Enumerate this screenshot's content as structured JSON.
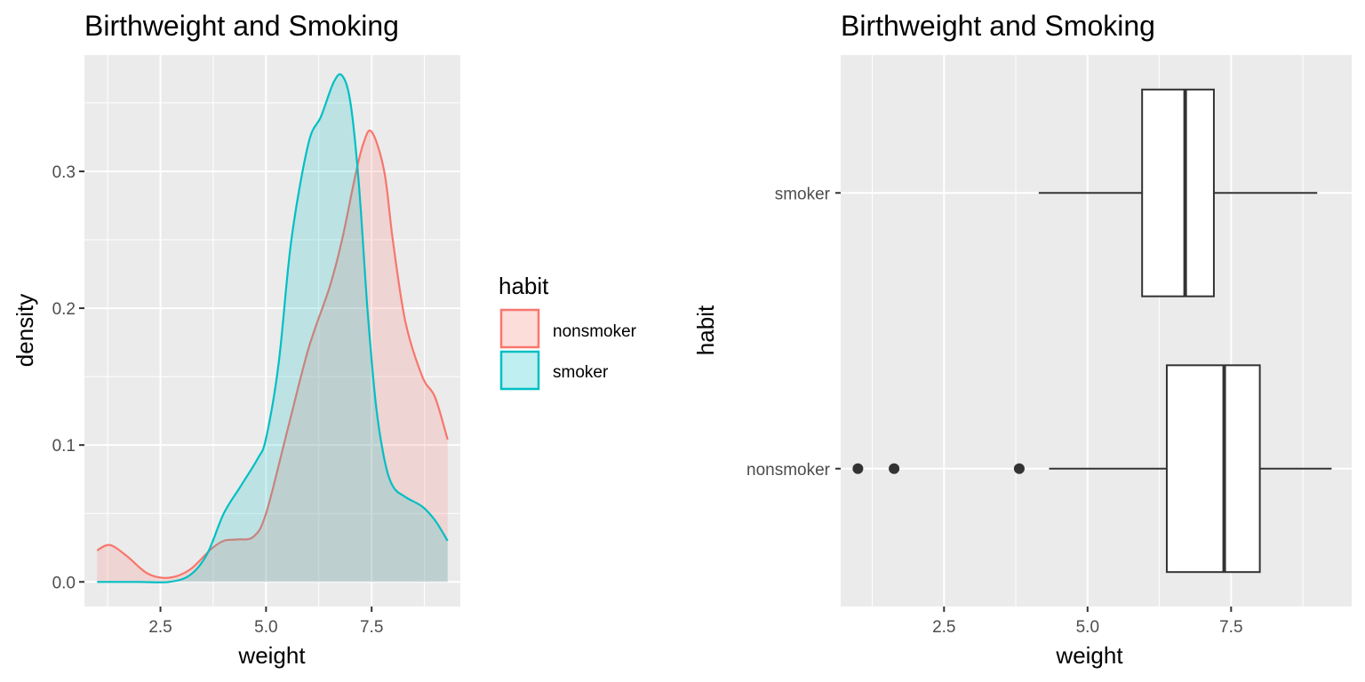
{
  "chart_data": [
    {
      "type": "area",
      "title": "Birthweight and Smoking",
      "xlabel": "weight",
      "ylabel": "density",
      "xlim": [
        0.7,
        9.6
      ],
      "ylim": [
        -0.018,
        0.385
      ],
      "xticks": [
        2.5,
        5.0,
        7.5
      ],
      "xtick_labels": [
        "2.5",
        "5.0",
        "7.5"
      ],
      "yticks": [
        0.0,
        0.1,
        0.2,
        0.3
      ],
      "ytick_labels": [
        "0.0",
        "0.1",
        "0.2",
        "0.3"
      ],
      "grid": true,
      "legend": {
        "title": "habit",
        "position": "right",
        "items": [
          {
            "label": "nonsmoker",
            "color": "#F8766D"
          },
          {
            "label": "smoker",
            "color": "#00BFC4"
          }
        ]
      },
      "series": [
        {
          "name": "nonsmoker",
          "color": "#F8766D",
          "x": [
            1.0,
            1.3,
            1.7,
            2.2,
            2.7,
            3.2,
            3.7,
            4.0,
            4.3,
            4.7,
            5.0,
            5.5,
            6.0,
            6.5,
            6.8,
            7.1,
            7.3,
            7.5,
            7.8,
            8.0,
            8.3,
            8.7,
            9.0,
            9.3
          ],
          "y": [
            0.023,
            0.027,
            0.019,
            0.006,
            0.003,
            0.009,
            0.024,
            0.03,
            0.031,
            0.033,
            0.05,
            0.11,
            0.17,
            0.215,
            0.25,
            0.295,
            0.32,
            0.329,
            0.3,
            0.25,
            0.19,
            0.15,
            0.135,
            0.104
          ]
        },
        {
          "name": "smoker",
          "color": "#00BFC4",
          "x": [
            1.0,
            2.0,
            2.7,
            3.2,
            3.6,
            4.0,
            4.4,
            4.8,
            5.0,
            5.3,
            5.6,
            6.0,
            6.3,
            6.6,
            6.8,
            7.0,
            7.2,
            7.4,
            7.6,
            7.8,
            8.0,
            8.3,
            8.7,
            9.0,
            9.3
          ],
          "y": [
            0.0,
            0.0,
            0.0,
            0.005,
            0.02,
            0.05,
            0.07,
            0.09,
            0.105,
            0.16,
            0.25,
            0.32,
            0.34,
            0.365,
            0.37,
            0.35,
            0.29,
            0.2,
            0.13,
            0.09,
            0.07,
            0.062,
            0.055,
            0.045,
            0.03
          ]
        }
      ]
    },
    {
      "type": "box",
      "title": "Birthweight and Smoking",
      "xlabel": "weight",
      "ylabel": "habit",
      "xlim": [
        0.7,
        9.6
      ],
      "xticks": [
        2.5,
        5.0,
        7.5
      ],
      "xtick_labels": [
        "2.5",
        "5.0",
        "7.5"
      ],
      "categories": [
        "smoker",
        "nonsmoker"
      ],
      "grid": true,
      "boxes": [
        {
          "category": "smoker",
          "whisker_low": 4.15,
          "q1": 5.95,
          "median": 6.7,
          "q3": 7.2,
          "whisker_high": 9.0,
          "outliers": []
        },
        {
          "category": "nonsmoker",
          "whisker_low": 4.33,
          "q1": 6.38,
          "median": 7.38,
          "q3": 8.0,
          "whisker_high": 9.25,
          "outliers": [
            1.0,
            1.63,
            3.81
          ]
        }
      ]
    }
  ]
}
